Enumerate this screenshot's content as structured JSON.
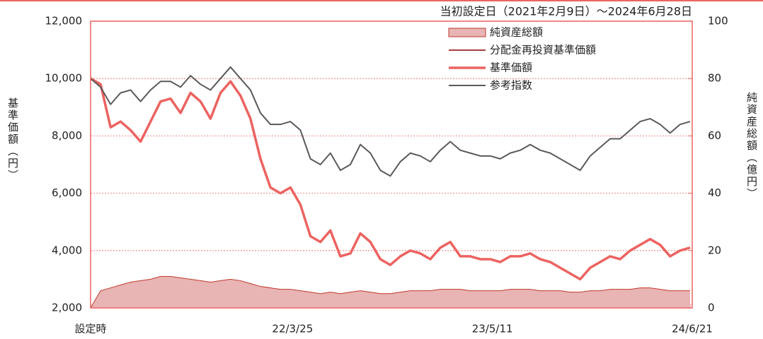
{
  "chart_data": {
    "type": "line",
    "annotation": "当初設定日（2021年2月9日）～2024年6月28日",
    "y_label": "基準価額（円）",
    "y2_label": "純資産総額（億円）",
    "categories": [
      "設定時",
      null,
      null,
      null,
      null,
      null,
      null,
      null,
      null,
      null,
      null,
      null,
      null,
      null,
      null,
      null,
      null,
      null,
      null,
      null,
      "22/3/25",
      null,
      null,
      null,
      null,
      null,
      null,
      null,
      null,
      null,
      null,
      null,
      null,
      null,
      null,
      null,
      null,
      null,
      null,
      null,
      "23/5/11",
      null,
      null,
      null,
      null,
      null,
      null,
      null,
      null,
      null,
      null,
      null,
      null,
      null,
      null,
      null,
      null,
      null,
      null,
      null,
      "24/6/21"
    ],
    "ylim": [
      2000,
      12000
    ],
    "yticks": [
      {
        "value": 2000,
        "label": "2,000"
      },
      {
        "value": 4000,
        "label": "4,000"
      },
      {
        "value": 6000,
        "label": "6,000"
      },
      {
        "value": 8000,
        "label": "8,000"
      },
      {
        "value": 10000,
        "label": "10,000"
      },
      {
        "value": 12000,
        "label": "12,000"
      }
    ],
    "y2lim": [
      0,
      100
    ],
    "y2ticks": [
      0,
      20,
      40,
      60,
      80,
      100
    ],
    "grid": true,
    "legend": "upper right",
    "series": [
      {
        "name": "純資産総額",
        "color": "#e8b4b4",
        "axis": "y2",
        "kind": "area",
        "values": [
          0,
          6,
          7,
          8,
          9,
          9.5,
          10,
          11,
          11,
          10.5,
          10,
          9.5,
          9,
          9.5,
          10,
          9.5,
          8.5,
          7.5,
          7,
          6.5,
          6.5,
          6,
          5.5,
          5,
          5.5,
          5,
          5.5,
          6,
          5.5,
          5,
          5,
          5.5,
          6,
          6,
          6,
          6.5,
          6.5,
          6.5,
          6,
          6,
          6,
          6,
          6.5,
          6.5,
          6.5,
          6,
          6,
          6,
          5.5,
          5.5,
          6,
          6,
          6.5,
          6.5,
          6.5,
          7,
          7,
          6.5,
          6,
          6,
          6
        ]
      },
      {
        "name": "分配金再投資基準価額",
        "color": "#8b0000",
        "values": [
          10000,
          9800,
          8300,
          8500,
          8200,
          7800,
          8500,
          9200,
          9300,
          8800,
          9500,
          9200,
          8600,
          9500,
          9900,
          9400,
          8600,
          7200,
          6200,
          6000,
          6200,
          5600,
          4500,
          4300,
          4700,
          3800,
          3900,
          4600,
          4300,
          3700,
          3500,
          3800,
          4000,
          3900,
          3700,
          4100,
          4300,
          3800,
          3800,
          3700,
          3700,
          3600,
          3800,
          3800,
          3900,
          3700,
          3600,
          3400,
          3200,
          3000,
          3400,
          3600,
          3800,
          3700,
          4000,
          4200,
          4400,
          4200,
          3800,
          4000,
          4100
        ]
      },
      {
        "name": "基準価額",
        "color": "#ec6360",
        "values": [
          10000,
          9800,
          8300,
          8500,
          8200,
          7800,
          8500,
          9200,
          9300,
          8800,
          9500,
          9200,
          8600,
          9500,
          9900,
          9400,
          8600,
          7200,
          6200,
          6000,
          6200,
          5600,
          4500,
          4300,
          4700,
          3800,
          3900,
          4600,
          4300,
          3700,
          3500,
          3800,
          4000,
          3900,
          3700,
          4100,
          4300,
          3800,
          3800,
          3700,
          3700,
          3600,
          3800,
          3800,
          3900,
          3700,
          3600,
          3400,
          3200,
          3000,
          3400,
          3600,
          3800,
          3700,
          4000,
          4200,
          4400,
          4200,
          3800,
          4000,
          4100
        ]
      },
      {
        "name": "参考指数",
        "color": "#5a5a5a",
        "values": [
          10000,
          9700,
          9100,
          9500,
          9600,
          9200,
          9600,
          9900,
          9900,
          9700,
          10100,
          9800,
          9600,
          10000,
          10400,
          10000,
          9600,
          8800,
          8400,
          8400,
          8500,
          8200,
          7200,
          7000,
          7400,
          6800,
          7000,
          7700,
          7400,
          6800,
          6600,
          7100,
          7400,
          7300,
          7100,
          7500,
          7800,
          7500,
          7400,
          7300,
          7300,
          7200,
          7400,
          7500,
          7700,
          7500,
          7400,
          7200,
          7000,
          6800,
          7300,
          7600,
          7900,
          7900,
          8200,
          8500,
          8600,
          8400,
          8100,
          8400,
          8500
        ]
      }
    ]
  }
}
